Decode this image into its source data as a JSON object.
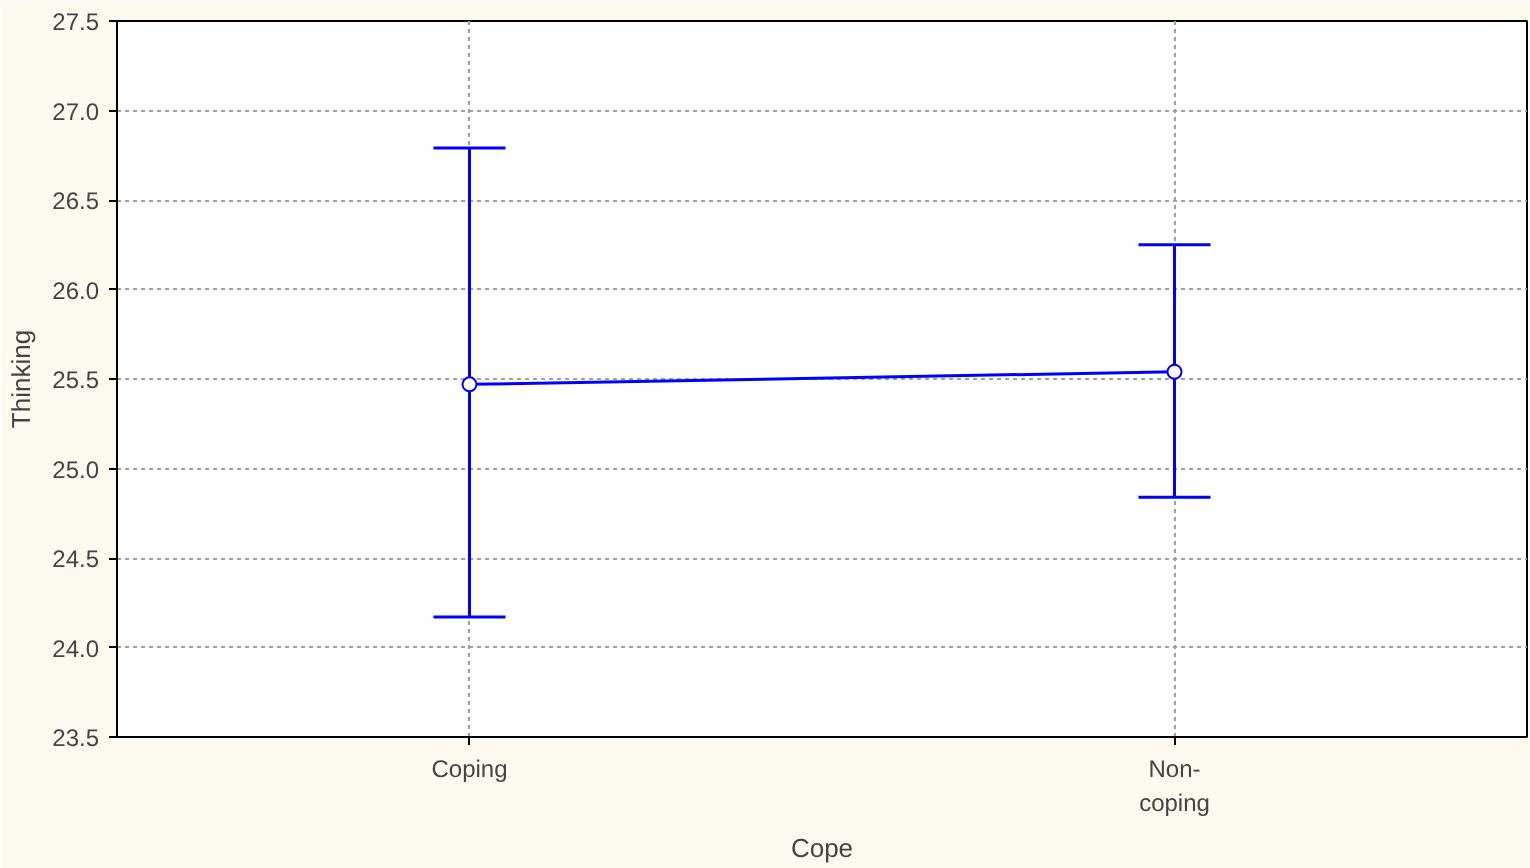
{
  "chart_data": {
    "type": "line",
    "xlabel": "Cope",
    "ylabel": "Thinking",
    "categories": [
      "Coping",
      "Non-\ncoping"
    ],
    "series": [
      {
        "color": "#0000ff",
        "values": [
          25.47,
          25.54
        ],
        "errors": [
          [
            24.17,
            26.79
          ],
          [
            24.84,
            26.25
          ]
        ]
      }
    ],
    "ylim": [
      23.5,
      27.5
    ],
    "yticks": [
      {
        "value": 23.5,
        "label": "23.5"
      },
      {
        "value": 24,
        "label": "24.0"
      },
      {
        "value": 24.5,
        "label": "24.5"
      },
      {
        "value": 25,
        "label": "25.0"
      },
      {
        "value": 25.5,
        "label": "25.5"
      },
      {
        "value": 26,
        "label": "26.0"
      },
      {
        "value": 26.5,
        "label": "26.5"
      },
      {
        "value": 27,
        "label": "27.0"
      },
      {
        "value": 27.5,
        "label": "27.5"
      }
    ],
    "grid": true,
    "marker": "circle",
    "line_style": "solid"
  }
}
